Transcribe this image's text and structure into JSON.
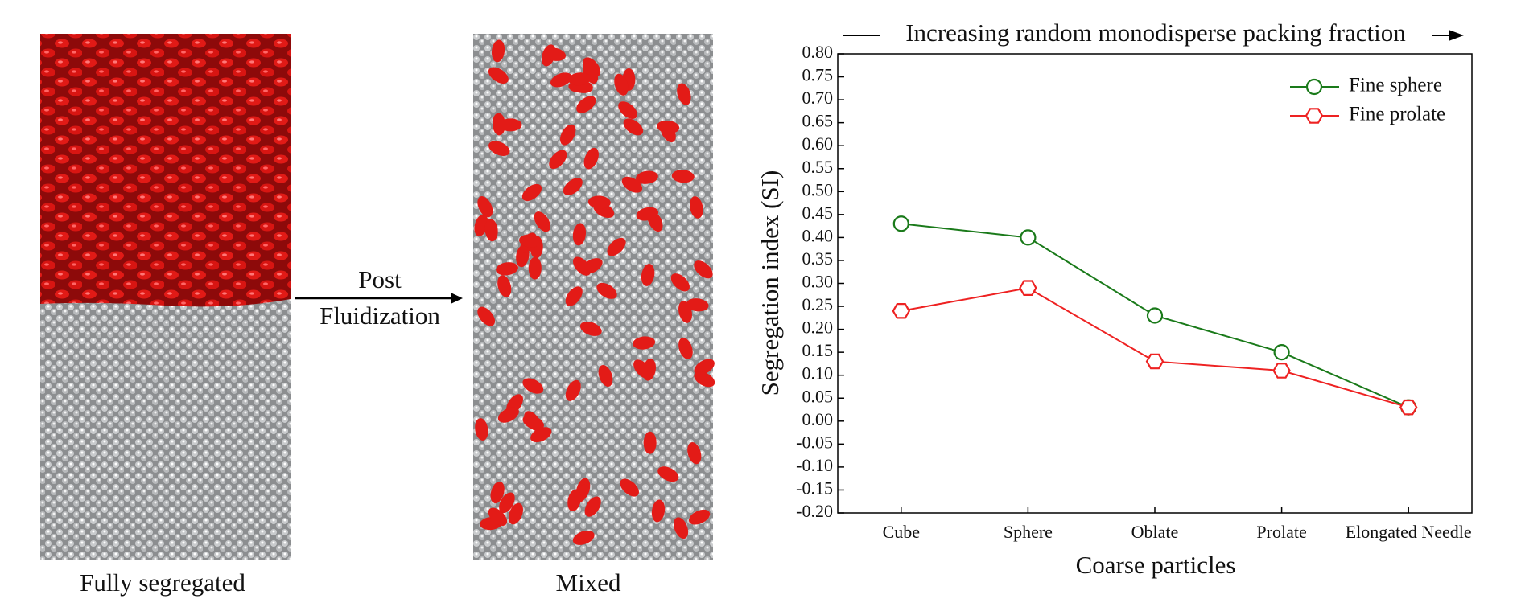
{
  "panels": {
    "before_caption": "Fully segregated",
    "after_caption": "Mixed",
    "arrow_label_top": "Post",
    "arrow_label_bottom": "Fluidization"
  },
  "chart_data": {
    "type": "line",
    "title": "Increasing random monodisperse packing fraction",
    "xlabel": "Coarse particles",
    "ylabel": "Segregation index (SI)",
    "categories": [
      "Cube",
      "Sphere",
      "Oblate",
      "Prolate",
      "Elongated Needle"
    ],
    "series": [
      {
        "name": "Fine sphere",
        "color": "#1a7a1a",
        "marker": "circle",
        "values": [
          0.43,
          0.4,
          0.23,
          0.15,
          0.03
        ]
      },
      {
        "name": "Fine prolate",
        "color": "#ee2222",
        "marker": "hexagon",
        "values": [
          0.24,
          0.29,
          0.13,
          0.11,
          0.03
        ]
      }
    ],
    "ylim": [
      -0.2,
      0.8
    ],
    "yticks": [
      {
        "value": -0.2,
        "label": "-0.20"
      },
      {
        "value": -0.15,
        "label": "-0.15"
      },
      {
        "value": -0.1,
        "label": "-0.10"
      },
      {
        "value": -0.05,
        "label": "-0.05"
      },
      {
        "value": 0,
        "label": "0.00"
      },
      {
        "value": 0.05,
        "label": "0.05"
      },
      {
        "value": 0.1,
        "label": "0.10"
      },
      {
        "value": 0.15,
        "label": "0.15"
      },
      {
        "value": 0.2,
        "label": "0.20"
      },
      {
        "value": 0.25,
        "label": "0.25"
      },
      {
        "value": 0.3,
        "label": "0.30"
      },
      {
        "value": 0.35,
        "label": "0.35"
      },
      {
        "value": 0.4,
        "label": "0.40"
      },
      {
        "value": 0.45,
        "label": "0.45"
      },
      {
        "value": 0.5,
        "label": "0.50"
      },
      {
        "value": 0.55,
        "label": "0.55"
      },
      {
        "value": 0.6,
        "label": "0.60"
      },
      {
        "value": 0.65,
        "label": "0.65"
      },
      {
        "value": 0.7,
        "label": "0.70"
      },
      {
        "value": 0.75,
        "label": "0.75"
      },
      {
        "value": 0.8,
        "label": "0.80"
      }
    ],
    "grid": false,
    "legend": "upper right"
  }
}
